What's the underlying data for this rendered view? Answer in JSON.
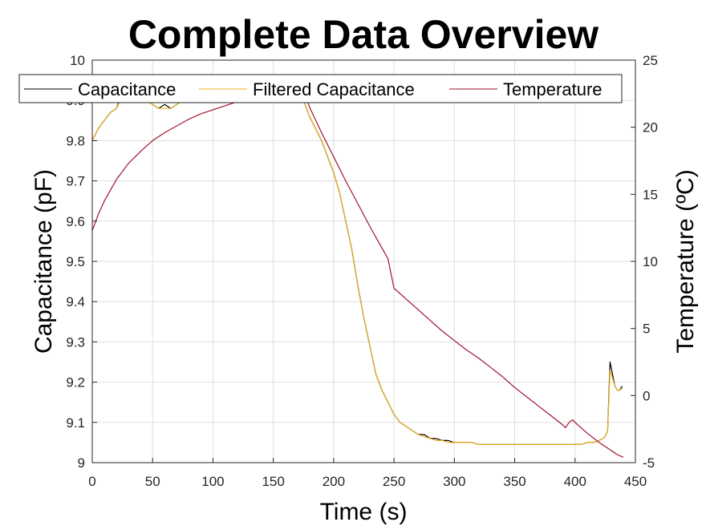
{
  "chart_data": {
    "type": "line",
    "title": "Complete Data Overview",
    "xlabel": "Time (s)",
    "ylabel_left": "Capacitance (pF)",
    "ylabel_right": "Temperature (ºC)",
    "xlim": [
      0,
      450
    ],
    "ylim_left": [
      9,
      10
    ],
    "ylim_right": [
      -5,
      25
    ],
    "x_ticks": [
      "0",
      "50",
      "100",
      "150",
      "200",
      "250",
      "300",
      "350",
      "400",
      "450"
    ],
    "y_left_ticks": [
      "9",
      "9.1",
      "9.2",
      "9.3",
      "9.4",
      "9.5",
      "9.6",
      "9.7",
      "9.8",
      "9.9",
      "10"
    ],
    "y_right_ticks": [
      "-5",
      "0",
      "5",
      "10",
      "15",
      "20",
      "25"
    ],
    "grid": true,
    "legend_position": "top",
    "series": [
      {
        "name": "Capacitance",
        "axis": "left",
        "color": "#000000",
        "x": [
          0,
          5,
          10,
          15,
          20,
          25,
          30,
          35,
          40,
          45,
          50,
          55,
          60,
          65,
          70,
          75,
          80,
          85,
          90,
          95,
          100,
          105,
          110,
          115,
          120,
          125,
          130,
          135,
          140,
          145,
          150,
          155,
          160,
          165,
          170,
          175,
          180,
          185,
          190,
          195,
          200,
          205,
          210,
          215,
          220,
          225,
          230,
          235,
          240,
          245,
          250,
          255,
          260,
          265,
          270,
          275,
          280,
          285,
          290,
          295,
          300,
          305,
          310,
          315,
          320,
          325,
          330,
          335,
          340,
          345,
          350,
          355,
          360,
          365,
          370,
          375,
          380,
          385,
          390,
          395,
          400,
          405,
          410,
          415,
          420,
          423,
          425,
          427,
          429,
          431,
          433,
          435,
          437,
          439
        ],
        "y": [
          9.8,
          9.83,
          9.85,
          9.87,
          9.88,
          9.92,
          9.93,
          9.92,
          9.91,
          9.9,
          9.89,
          9.88,
          9.89,
          9.88,
          9.89,
          9.9,
          9.91,
          9.92,
          9.93,
          9.94,
          9.95,
          9.95,
          9.95,
          9.96,
          9.96,
          9.95,
          9.96,
          9.96,
          9.96,
          9.95,
          9.96,
          9.96,
          9.96,
          9.96,
          9.95,
          9.9,
          9.86,
          9.83,
          9.8,
          9.76,
          9.72,
          9.67,
          9.6,
          9.53,
          9.44,
          9.36,
          9.29,
          9.22,
          9.18,
          9.15,
          9.12,
          9.1,
          9.09,
          9.08,
          9.07,
          9.07,
          9.06,
          9.06,
          9.055,
          9.055,
          9.05,
          9.05,
          9.05,
          9.05,
          9.045,
          9.045,
          9.045,
          9.045,
          9.045,
          9.045,
          9.045,
          9.045,
          9.045,
          9.045,
          9.045,
          9.045,
          9.045,
          9.045,
          9.045,
          9.045,
          9.045,
          9.045,
          9.05,
          9.05,
          9.055,
          9.06,
          9.065,
          9.08,
          9.25,
          9.22,
          9.19,
          9.18,
          9.18,
          9.19
        ]
      },
      {
        "name": "Filtered Capacitance",
        "axis": "left",
        "color": "#EDB120",
        "x": [
          0,
          5,
          10,
          15,
          20,
          25,
          30,
          35,
          40,
          45,
          50,
          55,
          60,
          65,
          70,
          75,
          80,
          85,
          90,
          95,
          100,
          105,
          110,
          115,
          120,
          125,
          130,
          135,
          140,
          145,
          150,
          155,
          160,
          165,
          170,
          175,
          180,
          185,
          190,
          195,
          200,
          205,
          210,
          215,
          220,
          225,
          230,
          235,
          240,
          245,
          250,
          255,
          260,
          265,
          270,
          275,
          280,
          285,
          290,
          295,
          300,
          305,
          310,
          315,
          320,
          325,
          330,
          335,
          340,
          345,
          350,
          355,
          360,
          365,
          370,
          375,
          380,
          385,
          390,
          395,
          400,
          405,
          410,
          415,
          420,
          423,
          425,
          427,
          429,
          431,
          433,
          435,
          437,
          439
        ],
        "y": [
          9.8,
          9.83,
          9.85,
          9.87,
          9.88,
          9.91,
          9.92,
          9.92,
          9.91,
          9.9,
          9.89,
          9.88,
          9.88,
          9.88,
          9.89,
          9.9,
          9.91,
          9.92,
          9.93,
          9.94,
          9.95,
          9.95,
          9.95,
          9.96,
          9.96,
          9.95,
          9.96,
          9.96,
          9.96,
          9.95,
          9.96,
          9.96,
          9.96,
          9.96,
          9.95,
          9.9,
          9.86,
          9.83,
          9.8,
          9.76,
          9.72,
          9.67,
          9.6,
          9.53,
          9.44,
          9.36,
          9.29,
          9.22,
          9.18,
          9.15,
          9.12,
          9.1,
          9.09,
          9.08,
          9.07,
          9.065,
          9.06,
          9.055,
          9.055,
          9.05,
          9.05,
          9.05,
          9.05,
          9.05,
          9.045,
          9.045,
          9.045,
          9.045,
          9.045,
          9.045,
          9.045,
          9.045,
          9.045,
          9.045,
          9.045,
          9.045,
          9.045,
          9.045,
          9.045,
          9.045,
          9.045,
          9.045,
          9.05,
          9.05,
          9.055,
          9.06,
          9.065,
          9.08,
          9.23,
          9.21,
          9.19,
          9.18,
          9.18,
          9.185
        ]
      },
      {
        "name": "Temperature",
        "axis": "right",
        "color": "#A2142F",
        "x": [
          0,
          5,
          10,
          20,
          30,
          40,
          50,
          60,
          70,
          80,
          90,
          100,
          110,
          120,
          130,
          140,
          150,
          160,
          170,
          175,
          180,
          190,
          200,
          210,
          220,
          230,
          240,
          245,
          250,
          260,
          270,
          280,
          290,
          300,
          310,
          320,
          330,
          340,
          350,
          360,
          370,
          380,
          390,
          392,
          395,
          398,
          400,
          410,
          420,
          430,
          435,
          440
        ],
        "y": [
          12.3,
          13.5,
          14.5,
          16.1,
          17.3,
          18.2,
          19.0,
          19.6,
          20.1,
          20.6,
          21.0,
          21.3,
          21.6,
          21.9,
          22.2,
          22.5,
          22.8,
          23.0,
          23.1,
          22.8,
          21.5,
          19.6,
          17.8,
          16.0,
          14.3,
          12.6,
          11.0,
          10.2,
          8.0,
          7.2,
          6.4,
          5.6,
          4.8,
          4.1,
          3.4,
          2.8,
          2.1,
          1.4,
          0.6,
          -0.1,
          -0.8,
          -1.5,
          -2.2,
          -2.4,
          -2.0,
          -1.8,
          -2.0,
          -2.8,
          -3.5,
          -4.1,
          -4.4,
          -4.6
        ]
      }
    ]
  }
}
